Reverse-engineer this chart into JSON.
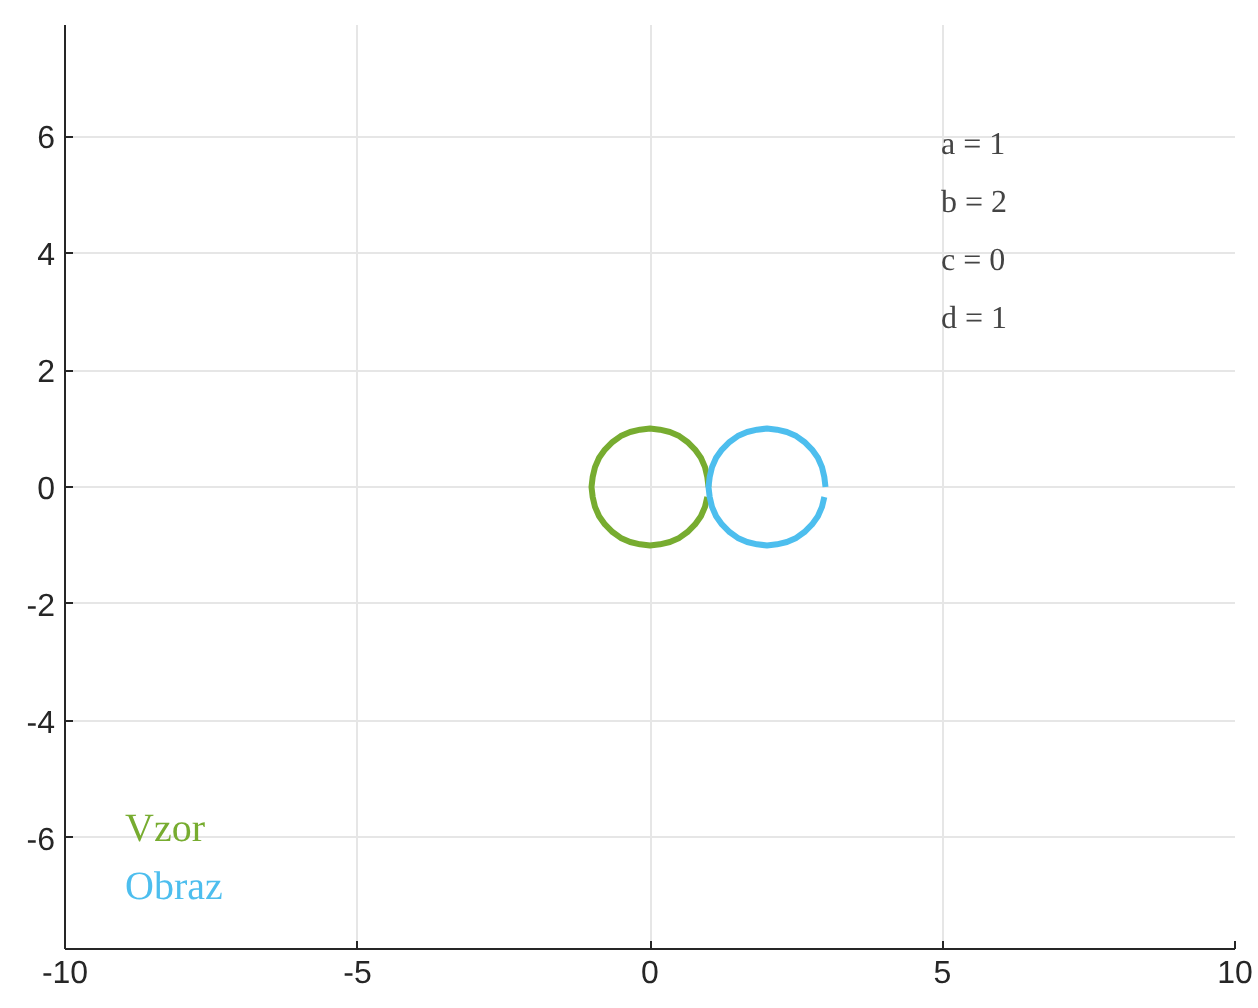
{
  "chart_data": {
    "type": "line",
    "xlim": [
      -10,
      10
    ],
    "ylim": [
      -7.9,
      7.9
    ],
    "xticks": [
      -10,
      -5,
      0,
      5,
      10
    ],
    "yticks": [
      -6,
      -4,
      -2,
      0,
      2,
      4,
      6
    ],
    "grid": true,
    "annotations": [
      "a = 1",
      "b = 2",
      "c = 0",
      "d = 1"
    ],
    "series": [
      {
        "name": "Vzor",
        "color": "#77ac30",
        "x": [
          1,
          0.98,
          0.94,
          0.87,
          0.77,
          0.64,
          0.5,
          0.34,
          0.17,
          0,
          -0.17,
          -0.34,
          -0.5,
          -0.64,
          -0.77,
          -0.87,
          -0.94,
          -0.98,
          -1,
          -0.98,
          -0.94,
          -0.87,
          -0.77,
          -0.64,
          -0.5,
          -0.34,
          -0.17,
          0,
          0.17,
          0.34,
          0.5,
          0.64,
          0.77,
          0.87,
          0.94,
          0.98
        ],
        "values": [
          0,
          0.17,
          0.34,
          0.5,
          0.64,
          0.77,
          0.87,
          0.94,
          0.98,
          1,
          0.98,
          0.94,
          0.87,
          0.77,
          0.64,
          0.5,
          0.34,
          0.17,
          0,
          -0.17,
          -0.34,
          -0.5,
          -0.64,
          -0.77,
          -0.87,
          -0.94,
          -0.98,
          -1,
          -0.98,
          -0.94,
          -0.87,
          -0.77,
          -0.64,
          -0.5,
          -0.34,
          -0.17
        ]
      },
      {
        "name": "Obraz",
        "color": "#4dbeee",
        "x": [
          3,
          2.98,
          2.94,
          2.87,
          2.77,
          2.64,
          2.5,
          2.34,
          2.17,
          2,
          1.83,
          1.66,
          1.5,
          1.36,
          1.23,
          1.13,
          1.06,
          1.02,
          1,
          1.02,
          1.06,
          1.13,
          1.23,
          1.36,
          1.5,
          1.66,
          1.83,
          2,
          2.17,
          2.34,
          2.5,
          2.64,
          2.77,
          2.87,
          2.94,
          2.98
        ],
        "values": [
          0,
          0.17,
          0.34,
          0.5,
          0.64,
          0.77,
          0.87,
          0.94,
          0.98,
          1,
          0.98,
          0.94,
          0.87,
          0.77,
          0.64,
          0.5,
          0.34,
          0.17,
          0,
          -0.17,
          -0.34,
          -0.5,
          -0.64,
          -0.77,
          -0.87,
          -0.94,
          -0.98,
          -1,
          -0.98,
          -0.94,
          -0.87,
          -0.77,
          -0.64,
          -0.5,
          -0.34,
          -0.17
        ]
      }
    ]
  }
}
